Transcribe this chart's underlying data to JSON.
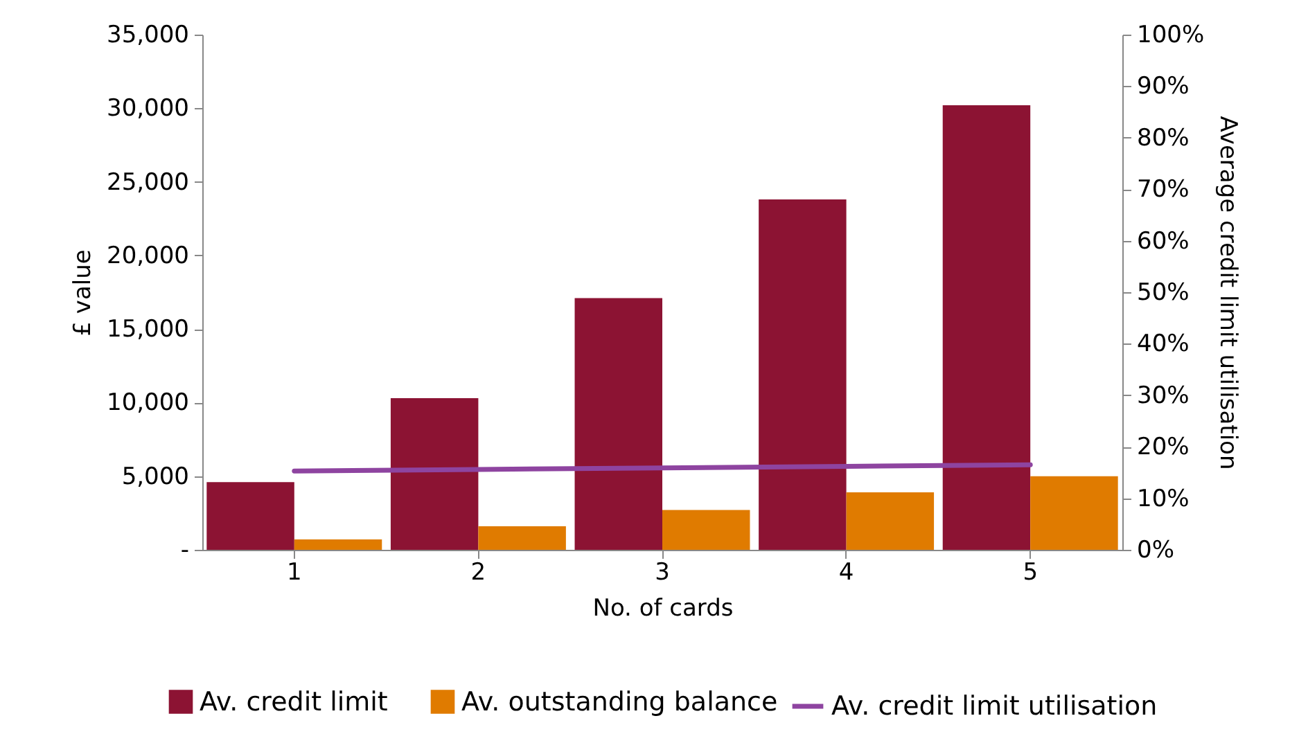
{
  "chart_data": {
    "type": "bar",
    "xlabel": "No. of cards",
    "ylabel": "£ value",
    "y2label": "Average credit limit utilisation",
    "categories": [
      "1",
      "2",
      "3",
      "4",
      "5"
    ],
    "series": [
      {
        "name": "Av. credit limit",
        "color": "#8c1333",
        "values": [
          4600,
          10300,
          17100,
          23800,
          30200
        ]
      },
      {
        "name": "Av. outstanding balance",
        "color": "#e07b00",
        "values": [
          700,
          1600,
          2700,
          3900,
          5000
        ]
      },
      {
        "name": "Av. credit limit utilisation",
        "color": "#8e44a0",
        "type": "line",
        "axis": "y2",
        "values": [
          15.3,
          15.6,
          15.9,
          16.2,
          16.5
        ]
      }
    ],
    "ylim": [
      0,
      35000
    ],
    "yticks": [
      {
        "value": 0,
        "label": "-"
      },
      {
        "value": 5000,
        "label": "5,000"
      },
      {
        "value": 10000,
        "label": "10,000"
      },
      {
        "value": 15000,
        "label": "15,000"
      },
      {
        "value": 20000,
        "label": "20,000"
      },
      {
        "value": 25000,
        "label": "25,000"
      },
      {
        "value": 30000,
        "label": "30,000"
      },
      {
        "value": 35000,
        "label": "35,000"
      }
    ],
    "y2lim": [
      0,
      100
    ],
    "y2ticks": [
      {
        "value": 0,
        "label": "0%"
      },
      {
        "value": 10,
        "label": "10%"
      },
      {
        "value": 20,
        "label": "20%"
      },
      {
        "value": 30,
        "label": "30%"
      },
      {
        "value": 40,
        "label": "40%"
      },
      {
        "value": 50,
        "label": "50%"
      },
      {
        "value": 60,
        "label": "60%"
      },
      {
        "value": 70,
        "label": "70%"
      },
      {
        "value": 80,
        "label": "80%"
      },
      {
        "value": 90,
        "label": "90%"
      },
      {
        "value": 100,
        "label": "100%"
      }
    ],
    "legend": "bottom",
    "grid": false
  }
}
